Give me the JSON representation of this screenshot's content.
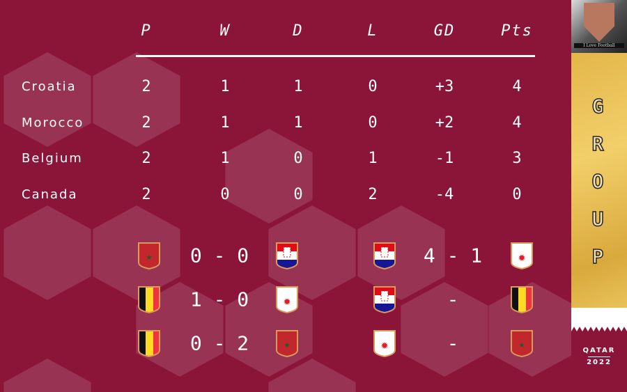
{
  "headers": [
    "P",
    "W",
    "D",
    "L",
    "GD",
    "Pts"
  ],
  "standings": [
    {
      "team": "Croatia",
      "P": "2",
      "W": "1",
      "D": "1",
      "L": "0",
      "GD": "+3",
      "Pts": "4"
    },
    {
      "team": "Morocco",
      "P": "2",
      "W": "1",
      "D": "1",
      "L": "0",
      "GD": "+2",
      "Pts": "4"
    },
    {
      "team": "Belgium",
      "P": "2",
      "W": "1",
      "D": "0",
      "L": "1",
      "GD": "-1",
      "Pts": "3"
    },
    {
      "team": "Canada",
      "P": "2",
      "W": "0",
      "D": "0",
      "L": "2",
      "GD": "-4",
      "Pts": "0"
    }
  ],
  "matches": [
    {
      "home": "morocco",
      "score": "0 - 0",
      "away": "croatia"
    },
    {
      "home": "croatia",
      "score": "4 - 1",
      "away": "canada"
    },
    {
      "home": "belgium",
      "score": "1 - 0",
      "away": "canada"
    },
    {
      "home": "croatia",
      "score": "-",
      "away": "belgium"
    },
    {
      "home": "belgium",
      "score": "0 - 2",
      "away": "morocco"
    },
    {
      "home": "canada",
      "score": "-",
      "away": "morocco"
    }
  ],
  "sidebar": {
    "logo_text": "I Love Football",
    "group_letters": [
      "G",
      "R",
      "O",
      "U",
      "P"
    ],
    "qatar": "QATAR",
    "year": "2022"
  },
  "colors": {
    "background": "#8a1538",
    "hex": "#9c3b5b",
    "gold": "#e3b64a"
  }
}
